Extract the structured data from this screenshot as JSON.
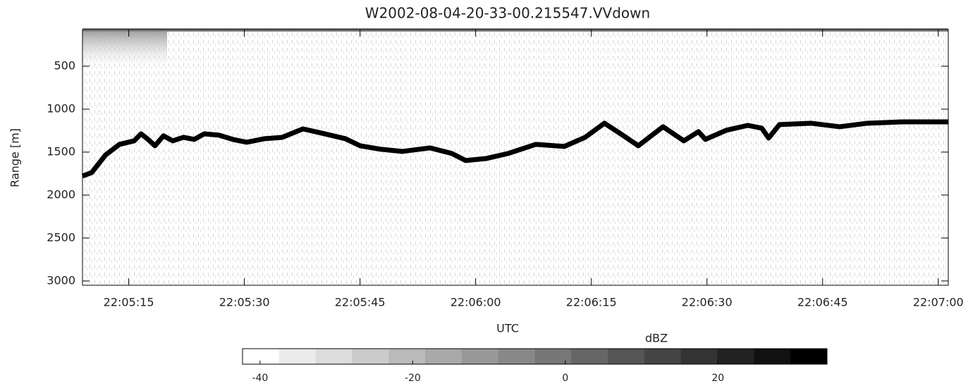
{
  "chart_data": {
    "type": "line",
    "title": "W2002-08-04-20-33-00.215547.VVdown",
    "x_label": "UTC",
    "y_label": "Range [m]",
    "xlim": [
      79509,
      79621.3
    ],
    "xticks": [
      {
        "value": 79515,
        "label": "22:05:15"
      },
      {
        "value": 79530,
        "label": "22:05:30"
      },
      {
        "value": 79545,
        "label": "22:05:45"
      },
      {
        "value": 79560,
        "label": "22:06:00"
      },
      {
        "value": 79575,
        "label": "22:06:15"
      },
      {
        "value": 79590,
        "label": "22:06:30"
      },
      {
        "value": 79605,
        "label": "22:06:45"
      },
      {
        "value": 79620,
        "label": "22:07:00"
      }
    ],
    "ylim": [
      3050,
      74
    ],
    "yticks": [
      500,
      1000,
      1500,
      2000,
      2500,
      3000
    ],
    "x": [
      79509,
      79510.2,
      79512,
      79513.8,
      79515.7,
      79516.6,
      79517.5,
      79518.4,
      79519.5,
      79520.7,
      79522.1,
      79523.5,
      79524.8,
      79526.7,
      79528.5,
      79530.3,
      79532.6,
      79534.9,
      79537.6,
      79540.4,
      79543.1,
      79545,
      79547.7,
      79550.5,
      79554.1,
      79556.9,
      79558.7,
      79561.4,
      79564.2,
      79567.8,
      79571.5,
      79574.2,
      79576.7,
      79578.8,
      79581.1,
      79584.3,
      79587,
      79588.9,
      79589.8,
      79592.5,
      79595.3,
      79597.1,
      79598,
      79599.4,
      79603.5,
      79607.2,
      79610.8,
      79615.4,
      79621.3
    ],
    "series": [
      {
        "color": "#000000",
        "values": [
          1779,
          1738,
          1533,
          1410,
          1369,
          1287,
          1352,
          1426,
          1311,
          1369,
          1328,
          1352,
          1287,
          1303,
          1352,
          1385,
          1344,
          1328,
          1230,
          1287,
          1344,
          1426,
          1467,
          1492,
          1451,
          1516,
          1598,
          1574,
          1516,
          1410,
          1434,
          1328,
          1164,
          1287,
          1426,
          1205,
          1369,
          1262,
          1352,
          1246,
          1189,
          1221,
          1336,
          1180,
          1164,
          1205,
          1164,
          1148,
          1148
        ]
      }
    ],
    "colorbar": {
      "label": "dBZ",
      "lim": [
        -42.3,
        34.3
      ],
      "ticks": [
        -40,
        -20,
        0,
        20
      ],
      "colors": [
        "#ffffff",
        "#ececec",
        "#dcdcdc",
        "#cbcbcb",
        "#bababa",
        "#a9a9a9",
        "#989898",
        "#888888",
        "#777777",
        "#666666",
        "#555555",
        "#444444",
        "#333333",
        "#222222",
        "#111111",
        "#000000"
      ]
    }
  }
}
